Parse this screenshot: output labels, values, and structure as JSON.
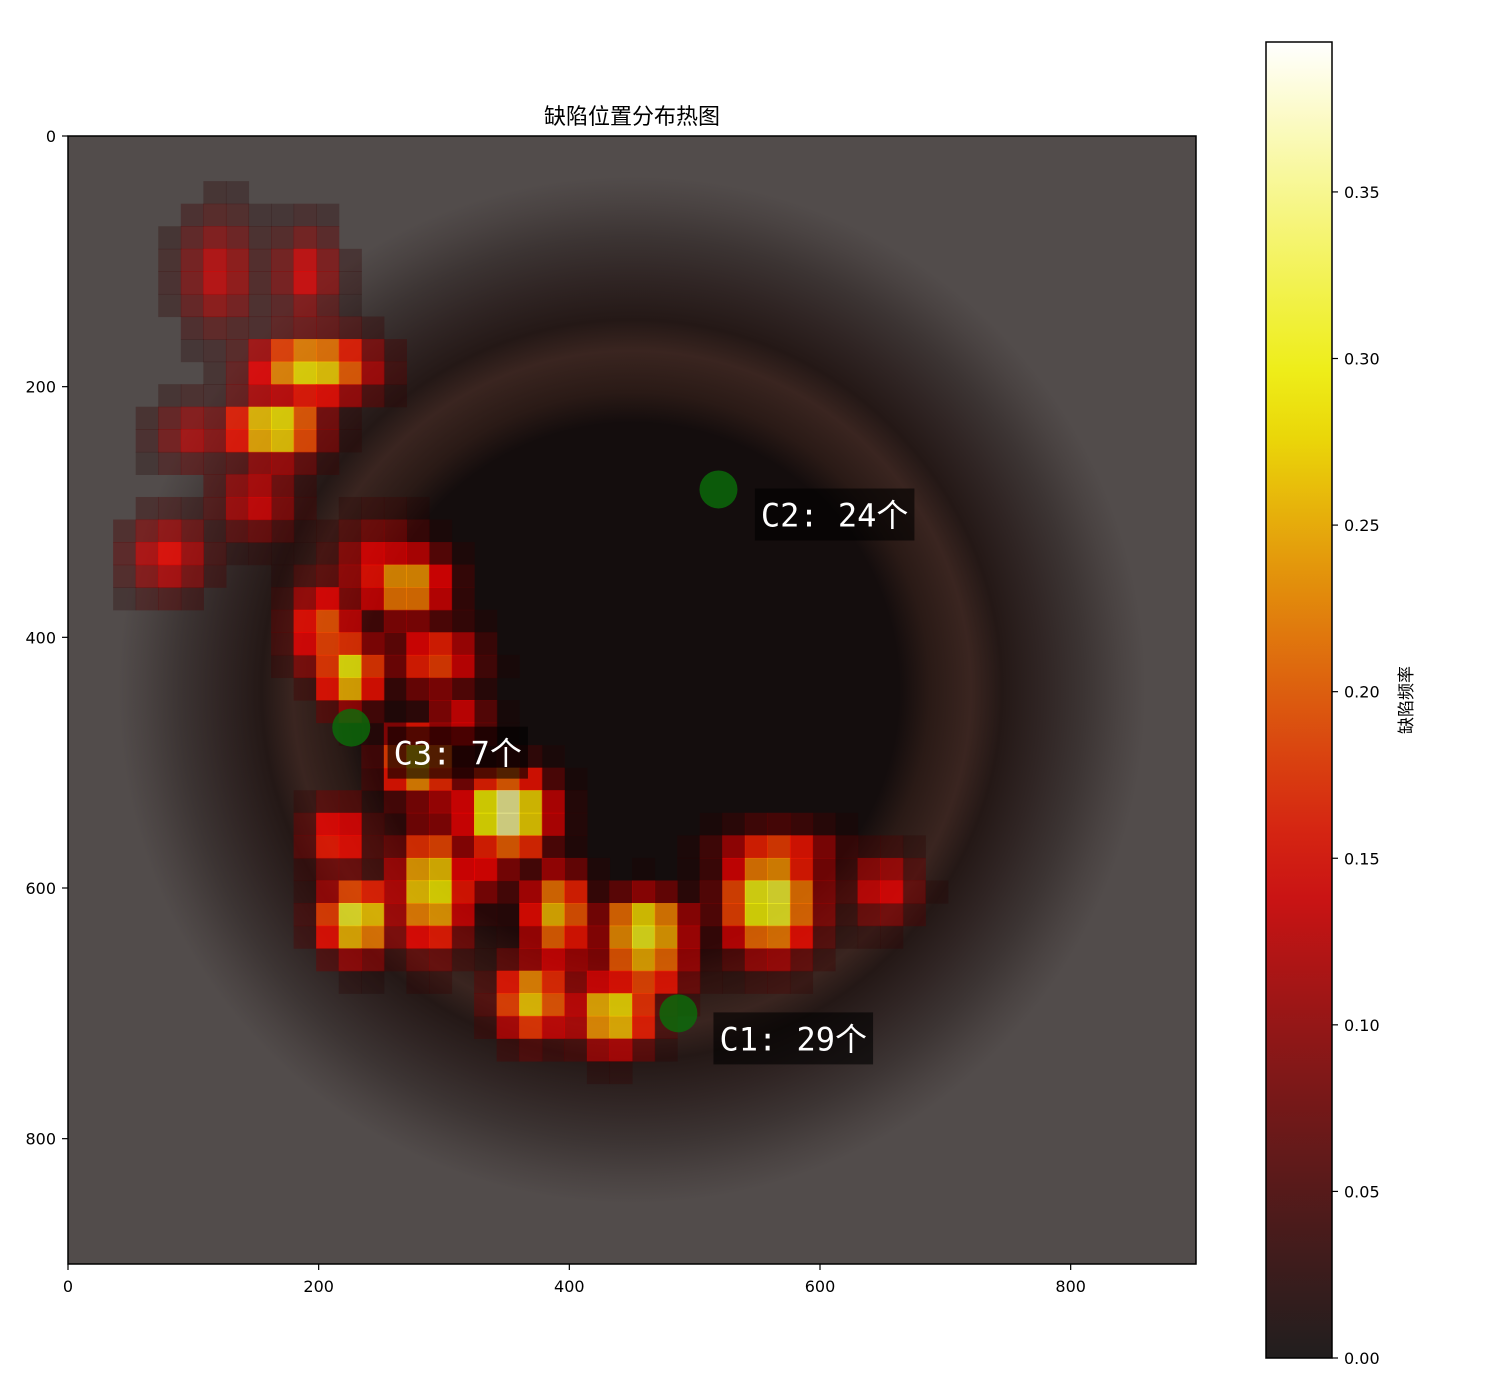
{
  "chart_data": {
    "type": "heatmap",
    "title": "缺陷位置分布热图",
    "xlim": [
      0,
      900
    ],
    "ylim": [
      900,
      0
    ],
    "x_ticks": [
      0,
      200,
      400,
      600,
      800
    ],
    "y_ticks": [
      0,
      200,
      400,
      600,
      800
    ],
    "cell_size": 18,
    "background_image": "bottle-mouth-photo",
    "overlay_cmap": "hot",
    "colorbar": {
      "label": "缺陷频率",
      "range": [
        0,
        0.395
      ],
      "ticks": [
        "0.00",
        "0.05",
        "0.10",
        "0.15",
        "0.20",
        "0.25",
        "0.30",
        "0.35"
      ],
      "tick_values": [
        0,
        0.05,
        0.1,
        0.15,
        0.2,
        0.25,
        0.3,
        0.35
      ]
    },
    "cluster_blobs": [
      {
        "cx": 120,
        "cy": 110,
        "peak": 0.13,
        "sx": 24,
        "sy": 36
      },
      {
        "cx": 190,
        "cy": 110,
        "peak": 0.14,
        "sx": 20,
        "sy": 28
      },
      {
        "cx": 195,
        "cy": 185,
        "peak": 0.29,
        "sx": 36,
        "sy": 20
      },
      {
        "cx": 165,
        "cy": 233,
        "peak": 0.31,
        "sx": 28,
        "sy": 20
      },
      {
        "cx": 102,
        "cy": 238,
        "peak": 0.12,
        "sx": 26,
        "sy": 20
      },
      {
        "cx": 150,
        "cy": 291,
        "peak": 0.14,
        "sx": 26,
        "sy": 24
      },
      {
        "cx": 80,
        "cy": 335,
        "peak": 0.15,
        "sx": 26,
        "sy": 24
      },
      {
        "cx": 205,
        "cy": 393,
        "peak": 0.2,
        "sx": 22,
        "sy": 30
      },
      {
        "cx": 225,
        "cy": 428,
        "peak": 0.3,
        "sx": 18,
        "sy": 22
      },
      {
        "cx": 270,
        "cy": 358,
        "peak": 0.26,
        "sx": 26,
        "sy": 22
      },
      {
        "cx": 250,
        "cy": 345,
        "peak": 0.16,
        "sx": 30,
        "sy": 28
      },
      {
        "cx": 293,
        "cy": 417,
        "peak": 0.19,
        "sx": 28,
        "sy": 22
      },
      {
        "cx": 312,
        "cy": 468,
        "peak": 0.15,
        "sx": 20,
        "sy": 22
      },
      {
        "cx": 280,
        "cy": 500,
        "peak": 0.27,
        "sx": 22,
        "sy": 22
      },
      {
        "cx": 215,
        "cy": 560,
        "peak": 0.18,
        "sx": 20,
        "sy": 22
      },
      {
        "cx": 290,
        "cy": 600,
        "peak": 0.3,
        "sx": 22,
        "sy": 36
      },
      {
        "cx": 230,
        "cy": 625,
        "peak": 0.32,
        "sx": 22,
        "sy": 22
      },
      {
        "cx": 330,
        "cy": 580,
        "peak": 0.15,
        "sx": 24,
        "sy": 26
      },
      {
        "cx": 390,
        "cy": 620,
        "peak": 0.26,
        "sx": 20,
        "sy": 28
      },
      {
        "cx": 390,
        "cy": 662,
        "peak": 0.14,
        "sx": 26,
        "sy": 24
      },
      {
        "cx": 460,
        "cy": 632,
        "peak": 0.32,
        "sx": 26,
        "sy": 20
      },
      {
        "cx": 435,
        "cy": 700,
        "peak": 0.3,
        "sx": 24,
        "sy": 22
      },
      {
        "cx": 370,
        "cy": 689,
        "peak": 0.27,
        "sx": 22,
        "sy": 24
      },
      {
        "cx": 350,
        "cy": 540,
        "peak": 0.38,
        "sx": 26,
        "sy": 24
      },
      {
        "cx": 300,
        "cy": 523,
        "peak": 0.13,
        "sx": 26,
        "sy": 20
      },
      {
        "cx": 355,
        "cy": 548,
        "peak": 0.3,
        "sx": 22,
        "sy": 22
      },
      {
        "cx": 565,
        "cy": 575,
        "peak": 0.2,
        "sx": 36,
        "sy": 18
      },
      {
        "cx": 560,
        "cy": 611,
        "peak": 0.33,
        "sx": 28,
        "sy": 32
      },
      {
        "cx": 650,
        "cy": 600,
        "peak": 0.15,
        "sx": 22,
        "sy": 22
      },
      {
        "cx": 460,
        "cy": 655,
        "peak": 0.25,
        "sx": 28,
        "sy": 26
      }
    ],
    "clusters": [
      {
        "label": "C1",
        "count_text": "C1: 29个",
        "x": 487,
        "y": 700,
        "label_x": 515,
        "label_y": 720
      },
      {
        "label": "C2",
        "count_text": "C2: 24个",
        "x": 519,
        "y": 282,
        "label_x": 548,
        "label_y": 302
      },
      {
        "label": "C3",
        "count_text": "C3: 7个",
        "x": 226,
        "y": 472,
        "label_x": 255,
        "label_y": 492
      }
    ],
    "cluster_marker_color": "#0a6e0a",
    "background_color": "#524c4b",
    "plot_frame_color": "#000000"
  }
}
